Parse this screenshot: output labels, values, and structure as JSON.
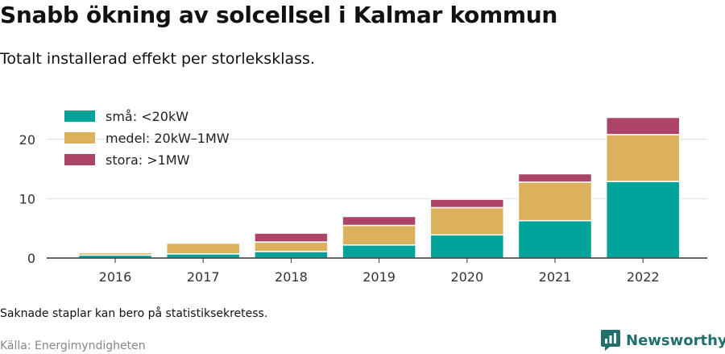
{
  "title": "Snabb ökning av solcellsel i Kalmar kommun",
  "subtitle": "Totalt installerad effekt per storleksklass.",
  "note": "Saknade staplar kan bero på statistiksekretess.",
  "source": "Källa: Energimyndigheten",
  "brand": "Newsworthy",
  "chart_data": {
    "type": "bar",
    "stacked": true,
    "categories": [
      "2016",
      "2017",
      "2018",
      "2019",
      "2020",
      "2021",
      "2022"
    ],
    "series": [
      {
        "name": "små: <20kW",
        "color": "#00a39a",
        "values": [
          0.5,
          0.7,
          1.1,
          2.2,
          3.9,
          6.3,
          12.9
        ]
      },
      {
        "name": "medel: 20kW–1MW",
        "color": "#dbb15d",
        "values": [
          0.4,
          1.8,
          1.6,
          3.3,
          4.6,
          6.5,
          7.9
        ]
      },
      {
        "name": "stora: >1MW",
        "color": "#ac4468",
        "values": [
          0.0,
          0.0,
          1.5,
          1.5,
          1.4,
          1.4,
          2.9
        ]
      }
    ],
    "yticks": [
      0,
      10,
      20
    ],
    "ylim": [
      0,
      25
    ],
    "xlabel": "",
    "ylabel": "",
    "grid": true,
    "legend_position": "top-left"
  }
}
